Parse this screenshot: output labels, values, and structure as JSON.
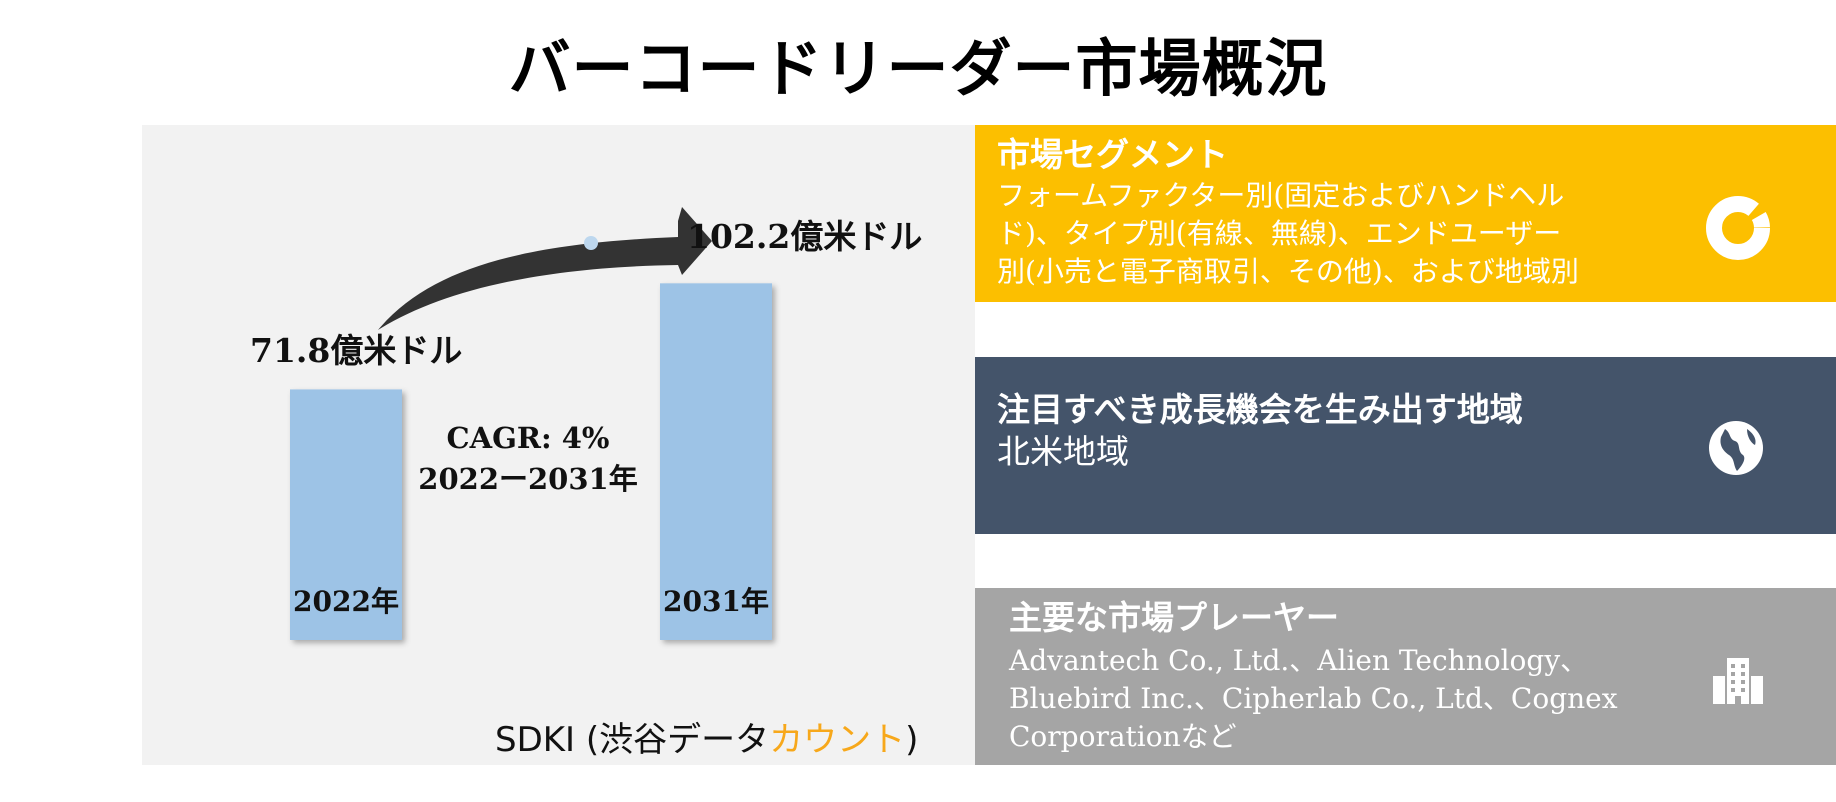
{
  "title": "バーコードリーダー市場概況",
  "chart_data": {
    "type": "bar",
    "categories": [
      "2022年",
      "2031年"
    ],
    "values": [
      71.8,
      102.2
    ],
    "value_labels": [
      "71.8億米ドル",
      "102.2億米ドル"
    ],
    "unit": "億米ドル",
    "cagr_label": "CAGR: 4%",
    "period_label": "2022ー2031年",
    "colors": {
      "bar": "#9dc3e6",
      "arrow": "#333333",
      "dot": "#bdd7ee"
    }
  },
  "logo": {
    "text": "SDKI (渋谷データ",
    "accent": "カウント",
    "close": ")",
    "accent_color": "#f7a81b"
  },
  "cards": {
    "segments": {
      "heading": "市場セグメント",
      "lines": [
        "フォームファクター別(固定およびハンドヘル",
        "ド)、タイプ別(有線、無線)、エンドユーザー",
        "別(小売と電子商取引、その他)、および地域別"
      ],
      "icon": "donut-chart-icon",
      "color": "#fcbf00"
    },
    "region": {
      "heading": "注目すべき成長機会を生み出す地域",
      "value": "北米地域",
      "icon": "globe-icon",
      "color": "#44546a"
    },
    "players": {
      "heading": "主要な市場プレーヤー",
      "lines": [
        "Advantech Co., Ltd.、Alien Technology、",
        "Bluebird Inc.、Cipherlab Co., Ltd、Cognex",
        "Corporationなど"
      ],
      "icon": "buildings-icon",
      "color": "#a5a5a5"
    }
  }
}
